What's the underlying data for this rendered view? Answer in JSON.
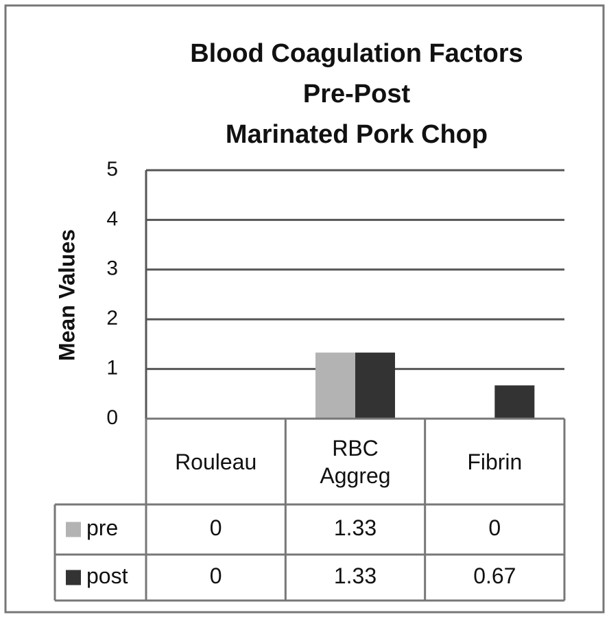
{
  "chart_data": {
    "type": "bar",
    "title": [
      "Blood Coagulation Factors",
      "Pre-Post",
      "Marinated Pork Chop"
    ],
    "y_label": "Mean Values",
    "categories": [
      "Rouleau",
      "RBC Aggreg",
      "Fibrin"
    ],
    "series": [
      {
        "name": "pre",
        "color": "#b3b3b3",
        "values": [
          0,
          1.33,
          0
        ]
      },
      {
        "name": "post",
        "color": "#333333",
        "values": [
          0,
          1.33,
          0.67
        ]
      }
    ],
    "ylim": [
      0,
      5
    ],
    "yticks": [
      0,
      1,
      2,
      3,
      4,
      5
    ],
    "grid": true,
    "data_table": true
  }
}
